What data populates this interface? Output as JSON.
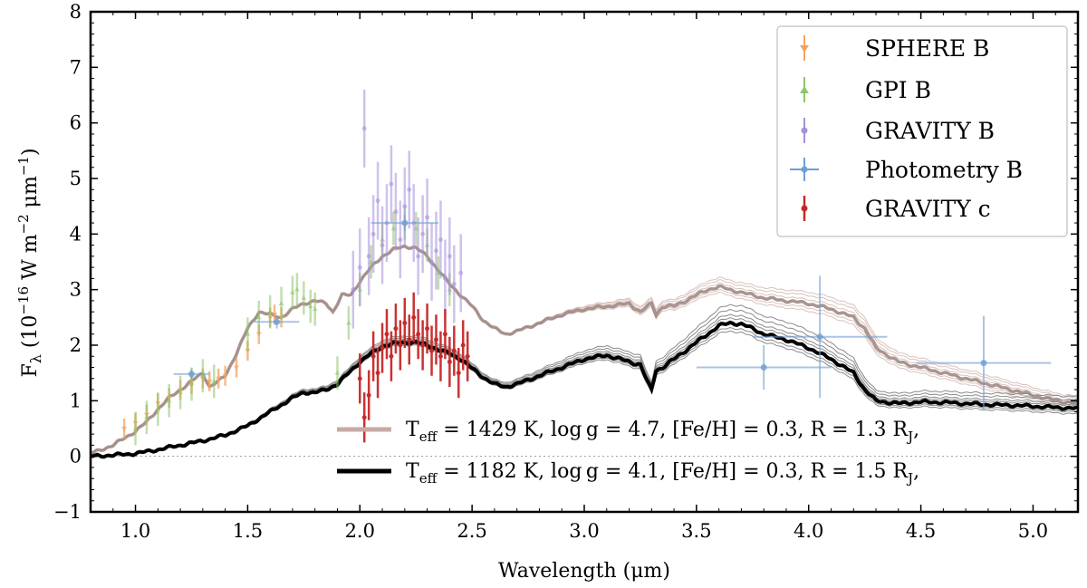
{
  "chart_data": {
    "type": "line",
    "xlabel": "Wavelength (μm)",
    "ylabel": "Fλ (10⁻¹⁶ W m⁻² μm⁻¹)",
    "ylabel_parts": {
      "main": "F",
      "sub": "λ",
      "open": " (10",
      "exp1": "−16",
      "mid": " W m",
      "exp2": "−2",
      "mid2": " μm",
      "exp3": "−1",
      "close": ")"
    },
    "xlim": [
      0.8,
      5.2
    ],
    "ylim": [
      -1,
      8
    ],
    "xticks": [
      "1.0",
      "1.5",
      "2.0",
      "2.5",
      "3.0",
      "3.5",
      "4.0",
      "4.5",
      "5.0"
    ],
    "xtick_values": [
      1.0,
      1.5,
      2.0,
      2.5,
      3.0,
      3.5,
      4.0,
      4.5,
      5.0
    ],
    "yticks": [
      "−1",
      "0",
      "1",
      "2",
      "3",
      "4",
      "5",
      "6",
      "7",
      "8"
    ],
    "ytick_values": [
      -1,
      0,
      1,
      2,
      3,
      4,
      5,
      6,
      7,
      8
    ],
    "legend": {
      "placement": "top-right",
      "entries": [
        {
          "label": "SPHERE B",
          "color": "#f4a460",
          "marker": "triangle-down"
        },
        {
          "label": "GPI B",
          "color": "#8cc56a",
          "marker": "triangle-up"
        },
        {
          "label": "GRAVITY B",
          "color": "#a88fd8",
          "marker": "circle"
        },
        {
          "label": "Photometry B",
          "color": "#6f9fd4",
          "marker": "circle"
        },
        {
          "label": "GRAVITY c",
          "color": "#c62828",
          "marker": "circle"
        }
      ]
    },
    "model_legend": {
      "placement": "lower-right",
      "entries": [
        {
          "color": "#c8a9a4",
          "teff_label": "T",
          "teff_sub": "eff",
          "text": " = 1429 K, log g = 4.7, [Fe/H] = 0.3, R = 1.3 R",
          "r_sub": "J",
          "end": ","
        },
        {
          "color": "#000000",
          "teff_label": "T",
          "teff_sub": "eff",
          "text": " = 1182 K, log g = 4.1, [Fe/H] = 0.3, R = 1.5 R",
          "r_sub": "J",
          "end": ","
        }
      ]
    },
    "series": [
      {
        "name": "Model B (Teff 1429 K)",
        "color": "#a08a84",
        "x": [
          0.8,
          0.9,
          1.0,
          1.05,
          1.1,
          1.15,
          1.2,
          1.25,
          1.3,
          1.33,
          1.37,
          1.4,
          1.45,
          1.5,
          1.55,
          1.6,
          1.65,
          1.7,
          1.75,
          1.8,
          1.85,
          1.88,
          1.92,
          1.96,
          2.0,
          2.05,
          2.1,
          2.15,
          2.2,
          2.25,
          2.3,
          2.35,
          2.4,
          2.45,
          2.5,
          2.55,
          2.6,
          2.65,
          2.7,
          2.8,
          2.9,
          3.0,
          3.1,
          3.2,
          3.25,
          3.3,
          3.32,
          3.35,
          3.4,
          3.45,
          3.5,
          3.55,
          3.6,
          3.65,
          3.7,
          3.75,
          3.8,
          3.9,
          4.0,
          4.1,
          4.2,
          4.25,
          4.3,
          4.4,
          4.5,
          4.6,
          4.7,
          4.8,
          4.9,
          5.0,
          5.1,
          5.2
        ],
        "y": [
          0.05,
          0.2,
          0.45,
          0.62,
          0.85,
          1.05,
          1.2,
          1.35,
          1.5,
          1.25,
          1.35,
          1.45,
          1.85,
          2.3,
          2.6,
          2.55,
          2.5,
          2.65,
          2.75,
          2.8,
          2.75,
          2.6,
          2.9,
          2.9,
          3.15,
          3.4,
          3.6,
          3.72,
          3.78,
          3.75,
          3.6,
          3.35,
          3.1,
          2.9,
          2.7,
          2.45,
          2.3,
          2.2,
          2.25,
          2.4,
          2.55,
          2.65,
          2.7,
          2.75,
          2.6,
          2.75,
          2.55,
          2.7,
          2.7,
          2.8,
          2.9,
          3.0,
          3.05,
          3.0,
          2.95,
          2.9,
          2.85,
          2.8,
          2.75,
          2.65,
          2.5,
          2.3,
          1.95,
          1.7,
          1.6,
          1.5,
          1.4,
          1.3,
          1.2,
          1.1,
          1.0,
          0.95
        ]
      },
      {
        "name": "Model c (Teff 1182 K)",
        "color": "#000000",
        "x": [
          0.8,
          0.9,
          1.0,
          1.1,
          1.2,
          1.3,
          1.4,
          1.5,
          1.6,
          1.7,
          1.75,
          1.8,
          1.85,
          1.9,
          1.95,
          2.0,
          2.05,
          2.1,
          2.15,
          2.2,
          2.25,
          2.3,
          2.35,
          2.4,
          2.45,
          2.5,
          2.55,
          2.6,
          2.65,
          2.7,
          2.8,
          2.9,
          3.0,
          3.1,
          3.2,
          3.25,
          3.28,
          3.3,
          3.32,
          3.35,
          3.4,
          3.45,
          3.5,
          3.55,
          3.6,
          3.65,
          3.7,
          3.75,
          3.8,
          3.9,
          4.0,
          4.1,
          4.2,
          4.25,
          4.3,
          4.4,
          4.5,
          4.6,
          4.7,
          4.8,
          4.9,
          5.0,
          5.1,
          5.2
        ],
        "y": [
          0.0,
          0.02,
          0.05,
          0.12,
          0.2,
          0.28,
          0.38,
          0.55,
          0.8,
          1.05,
          1.15,
          1.15,
          1.2,
          1.3,
          1.5,
          1.7,
          1.85,
          1.98,
          2.03,
          2.05,
          2.05,
          2.0,
          1.92,
          1.85,
          1.75,
          1.58,
          1.42,
          1.3,
          1.25,
          1.3,
          1.45,
          1.6,
          1.75,
          1.82,
          1.7,
          1.65,
          1.35,
          1.2,
          1.55,
          1.6,
          1.75,
          1.9,
          2.05,
          2.2,
          2.35,
          2.4,
          2.38,
          2.3,
          2.2,
          2.1,
          1.95,
          1.75,
          1.5,
          1.2,
          1.0,
          0.95,
          0.98,
          0.97,
          0.95,
          0.93,
          0.92,
          0.9,
          0.88,
          0.86
        ]
      },
      {
        "name": "SPHERE B",
        "color": "#f4a460",
        "x": [
          0.95,
          1.0,
          1.05,
          1.1,
          1.15,
          1.2,
          1.25,
          1.3,
          1.33,
          1.37,
          1.4,
          1.45,
          1.5,
          1.55,
          1.6,
          1.62,
          1.65
        ],
        "y": [
          0.5,
          0.6,
          0.75,
          0.95,
          1.05,
          1.2,
          1.3,
          1.4,
          1.35,
          1.4,
          1.45,
          1.6,
          1.9,
          2.2,
          2.5,
          2.55,
          2.5
        ],
        "err": 0.18
      },
      {
        "name": "GPI B",
        "color": "#8cc56a",
        "x": [
          1.0,
          1.05,
          1.1,
          1.15,
          1.2,
          1.25,
          1.3,
          1.35,
          1.5,
          1.55,
          1.6,
          1.65,
          1.7,
          1.72,
          1.75,
          1.78,
          1.8,
          1.9,
          1.95,
          2.0,
          2.05,
          2.1,
          2.15,
          2.2,
          2.25,
          2.3,
          2.35,
          2.4
        ],
        "y": [
          0.5,
          0.7,
          0.85,
          1.0,
          1.15,
          1.3,
          1.45,
          1.35,
          2.2,
          2.5,
          2.6,
          2.75,
          2.95,
          3.0,
          2.85,
          2.7,
          2.65,
          1.5,
          2.4,
          3.0,
          3.5,
          3.9,
          4.1,
          4.2,
          4.1,
          3.8,
          3.3,
          3.0
        ],
        "err": 0.3
      },
      {
        "name": "GRAVITY B",
        "color": "#a88fd8",
        "x": [
          1.97,
          2.0,
          2.02,
          2.04,
          2.06,
          2.08,
          2.1,
          2.12,
          2.14,
          2.16,
          2.18,
          2.2,
          2.22,
          2.24,
          2.26,
          2.28,
          2.3,
          2.32,
          2.34,
          2.36,
          2.38,
          2.4,
          2.42,
          2.45
        ],
        "y": [
          3.0,
          3.4,
          5.9,
          3.6,
          4.0,
          4.6,
          3.8,
          4.2,
          4.9,
          4.4,
          3.9,
          4.5,
          4.8,
          4.2,
          3.6,
          4.0,
          4.3,
          3.5,
          3.7,
          3.9,
          3.2,
          3.6,
          3.1,
          3.3
        ],
        "err": 0.7
      },
      {
        "name": "GRAVITY c",
        "color": "#c62828",
        "x": [
          2.0,
          2.02,
          2.04,
          2.06,
          2.08,
          2.1,
          2.12,
          2.14,
          2.16,
          2.18,
          2.2,
          2.22,
          2.24,
          2.26,
          2.28,
          2.3,
          2.32,
          2.34,
          2.36,
          2.38,
          2.4,
          2.42,
          2.44,
          2.46,
          2.48
        ],
        "y": [
          1.4,
          0.7,
          1.1,
          1.8,
          1.5,
          1.95,
          2.2,
          1.8,
          2.3,
          2.0,
          2.4,
          2.1,
          2.5,
          2.2,
          2.0,
          2.3,
          1.9,
          2.1,
          1.8,
          2.2,
          1.7,
          1.9,
          1.5,
          2.0,
          1.8
        ],
        "err": 0.45
      },
      {
        "name": "Photometry B",
        "color": "#6f9fd4",
        "points": [
          {
            "x": 1.25,
            "y": 1.48,
            "xerr": 0.08,
            "yerr": 0.1
          },
          {
            "x": 1.63,
            "y": 2.42,
            "xerr": 0.1,
            "yerr": 0.12
          },
          {
            "x": 2.2,
            "y": 4.2,
            "xerr": 0.15,
            "yerr": 0.15
          },
          {
            "x": 3.8,
            "y": 1.6,
            "xerr": 0.3,
            "yerr": 0.4
          },
          {
            "x": 4.05,
            "y": 2.15,
            "xerr": 0.3,
            "yerr": 1.1
          },
          {
            "x": 4.78,
            "y": 1.68,
            "xerr": 0.3,
            "yerr": 0.85
          }
        ]
      }
    ]
  }
}
